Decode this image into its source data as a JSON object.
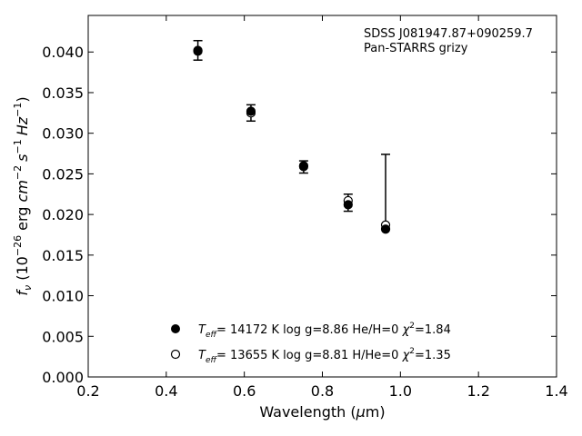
{
  "chart_data": {
    "type": "scatter",
    "title": "",
    "xlabel_parts": {
      "main": "Wavelength (",
      "greek": "μ",
      "rest": "m)"
    },
    "ylabel_parts": {
      "f": "f",
      "nu": "ν",
      "pre": " (10",
      "exp": "−26",
      "mid": " erg ",
      "cm": "cm",
      "cmexp": "−2",
      "s": "s",
      "sexp": "−1",
      "hz": "Hz",
      "hzexp": "−1",
      "close": ")"
    },
    "xlim": [
      0.2,
      1.4
    ],
    "ylim": [
      0.0,
      0.0445
    ],
    "x_ticks": [
      "0.2",
      "0.4",
      "0.6",
      "0.8",
      "1.0",
      "1.2",
      "1.4"
    ],
    "x_tick_values": [
      0.2,
      0.4,
      0.6,
      0.8,
      1.0,
      1.2,
      1.4
    ],
    "y_ticks": [
      "0.000",
      "0.005",
      "0.010",
      "0.015",
      "0.020",
      "0.025",
      "0.030",
      "0.035",
      "0.040"
    ],
    "y_tick_values": [
      0.0,
      0.005,
      0.01,
      0.015,
      0.02,
      0.025,
      0.03,
      0.035,
      0.04
    ],
    "grid": false,
    "annotations": [
      "SDSS J081947.87+090259.7",
      "Pan-STARRS grizy"
    ],
    "observed": {
      "x": [
        0.481,
        0.617,
        0.752,
        0.866,
        0.962
      ],
      "y": [
        0.0402,
        0.0326,
        0.0259,
        0.0215,
        0.0183
      ],
      "yerr_low": [
        0.0012,
        0.0011,
        0.0008,
        0.0011,
        0.0
      ],
      "yerr_high": [
        0.0012,
        0.0009,
        0.0007,
        0.001,
        0.0091
      ]
    },
    "series": [
      {
        "marker": "filled-circle",
        "label": {
          "teff": "T",
          "eff": "eff",
          "values": "= 14172 K  log g=8.86  He/H=0  ",
          "chi": "χ",
          "two": "2",
          "chival": "=1.84"
        },
        "x": [
          0.481,
          0.617,
          0.752,
          0.866,
          0.962
        ],
        "y": [
          0.0401,
          0.0327,
          0.026,
          0.0212,
          0.0182
        ]
      },
      {
        "marker": "open-circle",
        "label": {
          "teff": "T",
          "eff": "eff",
          "values": "= 13655 K  log g=8.81  H/He=0  ",
          "chi": "χ",
          "two": "2",
          "chival": "=1.35"
        },
        "x": [
          0.481,
          0.617,
          0.752,
          0.866,
          0.962
        ],
        "y": [
          0.0402,
          0.0325,
          0.0259,
          0.0217,
          0.0187
        ]
      }
    ],
    "legend_position": "lower-center",
    "colors": {
      "marker": "#000000",
      "background": "#ffffff"
    }
  }
}
